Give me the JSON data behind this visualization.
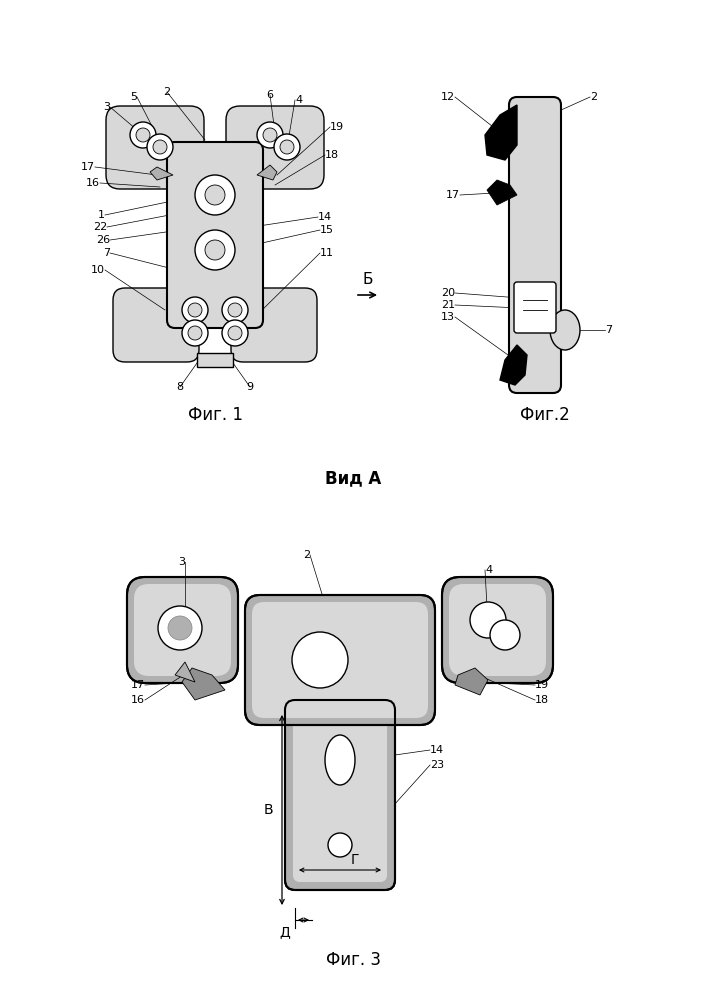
{
  "bg_color": "#ffffff",
  "fig_width": 7.07,
  "fig_height": 10.0,
  "fig1_caption": "Фиг. 1",
  "fig2_caption": "Фиг.2",
  "fig3_caption": "Фиг. 3",
  "vid_a_label": "Вид А",
  "b_arrow_label": "Б",
  "light_gray": "#d8d8d8",
  "dark_gray": "#909090",
  "black": "#000000",
  "white": "#ffffff",
  "mid_gray": "#b0b0b0"
}
